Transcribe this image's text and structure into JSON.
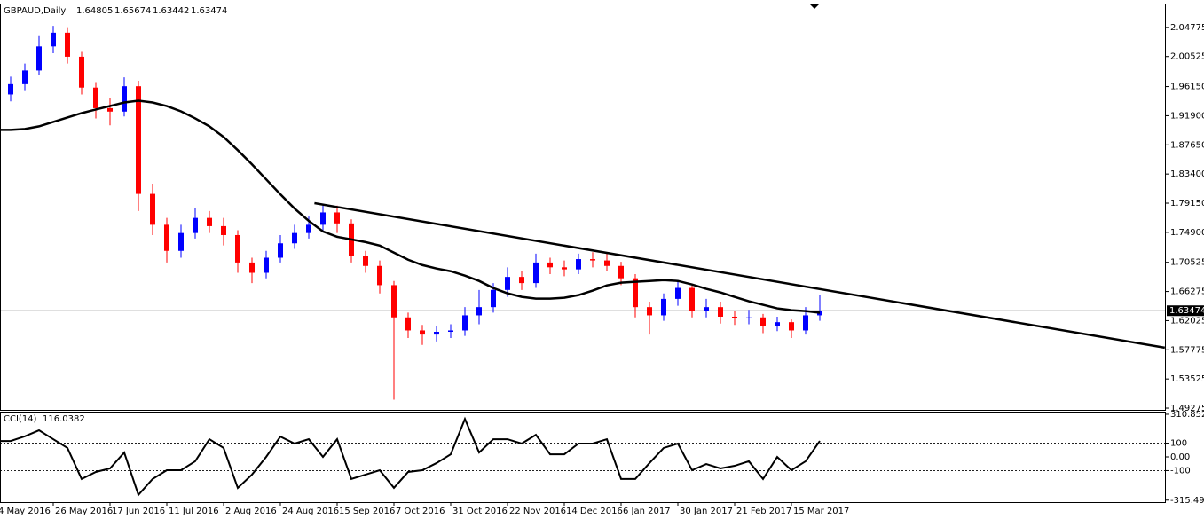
{
  "chart_data": {
    "type": "candlestick",
    "symbol": "GBPAUD,Daily",
    "header_ohlc": [
      1.64805,
      1.65674,
      1.63442,
      1.63474
    ],
    "categories": [
      "4 May 2016",
      null,
      null,
      null,
      "26 May 2016",
      null,
      null,
      null,
      "17 Jun 2016",
      null,
      null,
      null,
      "11 Jul 2016",
      null,
      null,
      null,
      "2 Aug 2016",
      null,
      null,
      null,
      "24 Aug 2016",
      null,
      null,
      null,
      "15 Sep 2016",
      null,
      null,
      null,
      "7 Oct 2016",
      null,
      null,
      null,
      "31 Oct 2016",
      null,
      null,
      null,
      "22 Nov 2016",
      null,
      null,
      null,
      "14 Dec 2016",
      null,
      null,
      null,
      "6 Jan 2017",
      null,
      null,
      null,
      "30 Jan 2017",
      null,
      null,
      null,
      "21 Feb 2017",
      null,
      null,
      null,
      "15 Mar 2017",
      null,
      null
    ],
    "open": [
      1.94,
      1.95,
      1.965,
      1.985,
      2.02,
      2.04,
      2.005,
      1.96,
      1.93,
      1.925,
      1.962,
      1.805,
      1.76,
      1.722,
      1.748,
      1.77,
      1.758,
      1.745,
      1.705,
      1.69,
      1.712,
      1.733,
      1.748,
      1.76,
      1.778,
      1.762,
      1.715,
      1.7,
      1.672,
      1.625,
      1.606,
      1.6,
      1.604,
      1.606,
      1.628,
      1.64,
      1.665,
      1.684,
      1.675,
      1.705,
      1.698,
      1.695,
      1.71,
      1.708,
      1.7,
      1.682,
      1.64,
      1.628,
      1.652,
      1.668,
      1.635,
      1.64,
      1.626,
      1.624,
      1.625,
      1.612,
      1.618,
      1.606,
      1.628
    ],
    "high": [
      1.962,
      1.976,
      1.995,
      2.035,
      2.05,
      2.048,
      2.012,
      1.968,
      1.945,
      1.975,
      1.97,
      1.82,
      1.77,
      1.76,
      1.785,
      1.78,
      1.77,
      1.752,
      1.712,
      1.722,
      1.745,
      1.76,
      1.772,
      1.79,
      1.788,
      1.768,
      1.722,
      1.708,
      1.678,
      1.632,
      1.614,
      1.612,
      1.615,
      1.64,
      1.665,
      1.675,
      1.698,
      1.692,
      1.718,
      1.712,
      1.708,
      1.718,
      1.72,
      1.718,
      1.706,
      1.688,
      1.648,
      1.66,
      1.678,
      1.674,
      1.652,
      1.648,
      1.635,
      1.636,
      1.63,
      1.626,
      1.622,
      1.64,
      1.657
    ],
    "low": [
      1.93,
      1.94,
      1.955,
      1.978,
      2.01,
      1.995,
      1.95,
      1.915,
      1.905,
      1.918,
      1.78,
      1.745,
      1.705,
      1.712,
      1.74,
      1.748,
      1.73,
      1.69,
      1.675,
      1.682,
      1.705,
      1.725,
      1.74,
      1.75,
      1.748,
      1.705,
      1.69,
      1.66,
      1.505,
      1.595,
      1.585,
      1.59,
      1.595,
      1.598,
      1.615,
      1.632,
      1.655,
      1.665,
      1.668,
      1.688,
      1.685,
      1.688,
      1.698,
      1.692,
      1.672,
      1.625,
      1.6,
      1.62,
      1.642,
      1.625,
      1.625,
      1.616,
      1.614,
      1.615,
      1.602,
      1.605,
      1.595,
      1.6,
      1.62
    ],
    "close": [
      1.95,
      1.965,
      1.985,
      2.02,
      2.04,
      2.005,
      1.96,
      1.93,
      1.925,
      1.962,
      1.805,
      1.76,
      1.722,
      1.748,
      1.77,
      1.758,
      1.745,
      1.705,
      1.69,
      1.712,
      1.733,
      1.748,
      1.76,
      1.778,
      1.762,
      1.715,
      1.7,
      1.672,
      1.625,
      1.606,
      1.6,
      1.604,
      1.606,
      1.628,
      1.64,
      1.665,
      1.684,
      1.675,
      1.705,
      1.698,
      1.695,
      1.71,
      1.708,
      1.7,
      1.682,
      1.64,
      1.628,
      1.652,
      1.668,
      1.635,
      1.64,
      1.626,
      1.624,
      1.625,
      1.612,
      1.618,
      1.606,
      1.628,
      1.63474
    ],
    "up_color": "#0000ff",
    "down_color": "#ff0000",
    "ylim": [
      1.4902,
      2.0825
    ],
    "yticks": [
      2.04775,
      2.00525,
      {
        "value": 1.9615,
        "label": "1.96150"
      },
      {
        "value": 1.919,
        "label": "1.91900"
      },
      {
        "value": 1.8765,
        "label": "1.87650"
      },
      {
        "value": 1.834,
        "label": "1.83400"
      },
      {
        "value": 1.7915,
        "label": "1.79150"
      },
      {
        "value": 1.749,
        "label": "1.74900"
      },
      1.70525,
      1.66275,
      1.62025,
      1.57775,
      1.53525,
      1.49275
    ],
    "current_price": 1.63474,
    "moving_average": {
      "color": "#000000",
      "values": [
        1.8984,
        1.8984,
        1.8997,
        1.9035,
        1.9099,
        1.9164,
        1.9228,
        1.928,
        1.9331,
        1.9383,
        1.9409,
        1.9383,
        1.9331,
        1.9254,
        1.9151,
        1.9035,
        1.8881,
        1.8687,
        1.8481,
        1.8262,
        1.8044,
        1.7837,
        1.7657,
        1.7503,
        1.7425,
        1.7387,
        1.7348,
        1.7297,
        1.7194,
        1.7091,
        1.7013,
        1.6962,
        1.6923,
        1.6859,
        1.6781,
        1.6678,
        1.6601,
        1.6549,
        1.6524,
        1.6524,
        1.6537,
        1.6575,
        1.664,
        1.6717,
        1.6756,
        1.6769,
        1.6781,
        1.6794,
        1.6781,
        1.673,
        1.6666,
        1.6614,
        1.6549,
        1.6485,
        1.6434,
        1.6382,
        1.6356,
        1.6343,
        1.6318
      ]
    },
    "trendline": {
      "color": "#000000",
      "x": [
        22.4,
        82.3
      ],
      "y": [
        1.7915,
        1.5809
      ]
    },
    "indicator": {
      "type": "line",
      "name": "CCI(14)",
      "color": "#000000",
      "values": [
        116,
        116,
        150,
        194,
        129,
        65,
        -161,
        -110,
        -84,
        32,
        -277,
        -161,
        -97,
        -97,
        -32,
        129,
        65,
        -226,
        -129,
        0,
        148,
        97,
        129,
        0,
        129,
        -161,
        -129,
        -97,
        -226,
        -110,
        -97,
        -45,
        19,
        277,
        32,
        129,
        129,
        97,
        161,
        19,
        19,
        97,
        97,
        129,
        -161,
        -161,
        -45,
        65,
        97,
        -97,
        -52,
        -84,
        -65,
        -32,
        -161,
        0,
        -97,
        -32,
        116.0382
      ],
      "ylim": [
        -330,
        330
      ],
      "yticks": [
        310.8524,
        100,
        {
          "value": 0,
          "label": "0.00"
        },
        -100,
        -315.4939
      ]
    }
  }
}
